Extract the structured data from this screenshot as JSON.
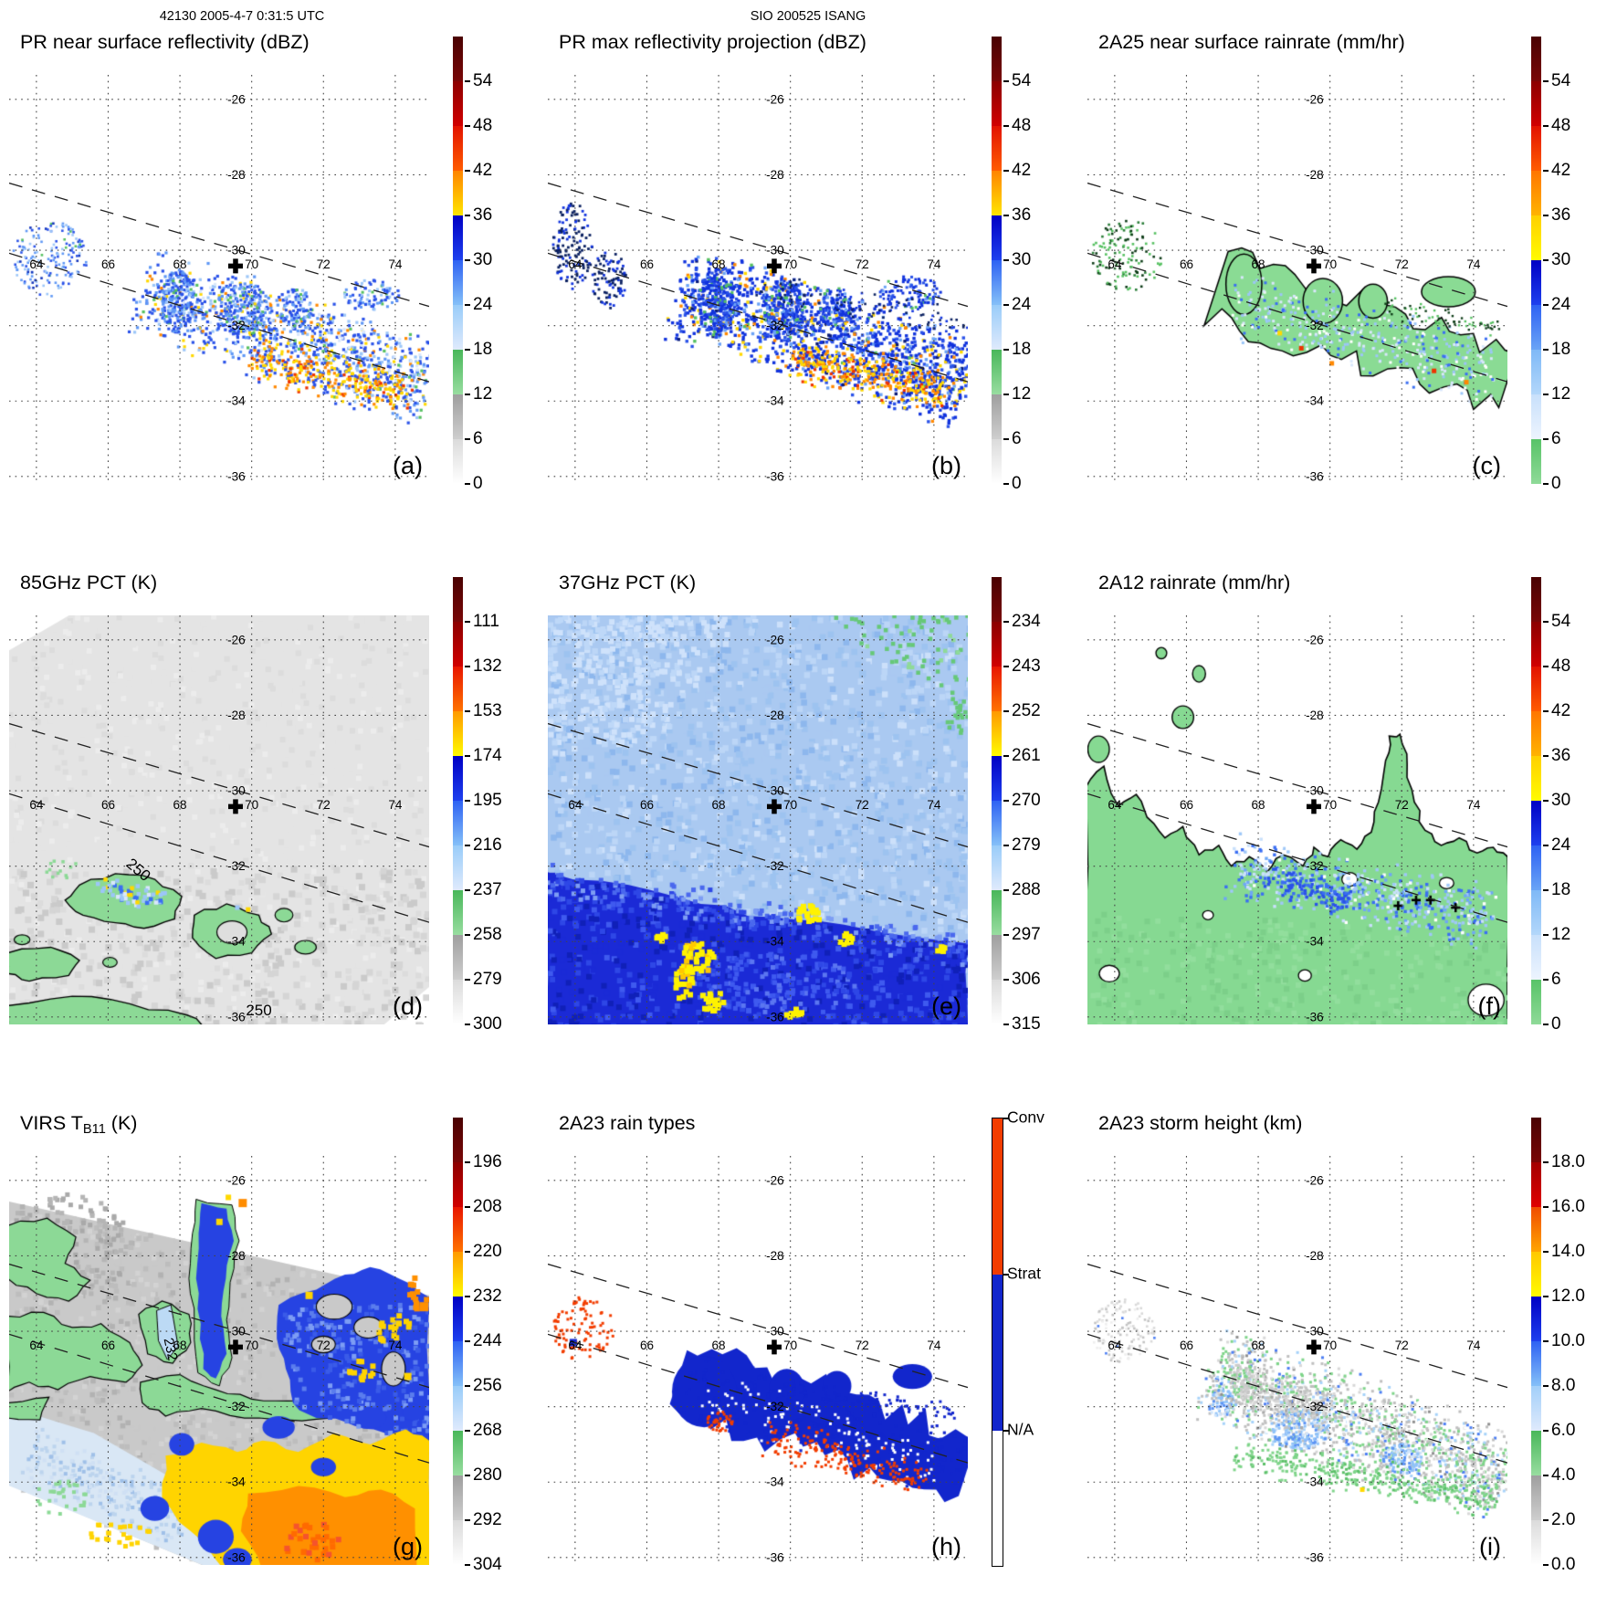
{
  "header": {
    "left": "42130 2005-4-7 0:31:5 UTC",
    "center": "SIO 200525 ISANG"
  },
  "map_labels": {
    "lons": [
      "64",
      "66",
      "68",
      "70",
      "72",
      "74"
    ],
    "lats": [
      "-26",
      "-28",
      "-30",
      "-32",
      "-34",
      "-36"
    ]
  },
  "marker": {
    "glyph": "plus"
  },
  "contour_labels": {
    "d": [
      "250",
      "250"
    ],
    "g": [
      "232"
    ]
  },
  "panels": [
    {
      "id": "a",
      "letter": "(a)",
      "title": "PR near surface reflectivity (dBZ)",
      "cb": "refl",
      "ticks": [
        "54",
        "48",
        "42",
        "36",
        "30",
        "24",
        "18",
        "12",
        "6",
        "0"
      ]
    },
    {
      "id": "b",
      "letter": "(b)",
      "title": "PR max reflectivity projection (dBZ)",
      "cb": "refl",
      "ticks": [
        "54",
        "48",
        "42",
        "36",
        "30",
        "24",
        "18",
        "12",
        "6",
        "0"
      ]
    },
    {
      "id": "c",
      "letter": "(c)",
      "title": "2A25 near surface rainrate (mm/hr)",
      "cb": "rain",
      "ticks": [
        "54",
        "48",
        "42",
        "36",
        "30",
        "24",
        "18",
        "12",
        "6",
        "0"
      ]
    },
    {
      "id": "d",
      "letter": "(d)",
      "title": "85GHz PCT (K)",
      "cb": "pct",
      "ticks": [
        "111",
        "132",
        "153",
        "174",
        "195",
        "216",
        "237",
        "258",
        "279",
        "300"
      ]
    },
    {
      "id": "e",
      "letter": "(e)",
      "title": "37GHz PCT (K)",
      "cb": "pct",
      "ticks": [
        "234",
        "243",
        "252",
        "261",
        "270",
        "279",
        "288",
        "297",
        "306",
        "315"
      ]
    },
    {
      "id": "f",
      "letter": "(f)",
      "title": "2A12 rainrate (mm/hr)",
      "cb": "rain",
      "ticks": [
        "54",
        "48",
        "42",
        "36",
        "30",
        "24",
        "18",
        "12",
        "6",
        "0"
      ]
    },
    {
      "id": "g",
      "letter": "(g)",
      "title_pre": "VIRS T",
      "title_sub": "B11",
      "title_post": " (K)",
      "cb": "pct",
      "ticks": [
        "196",
        "208",
        "220",
        "232",
        "244",
        "256",
        "268",
        "280",
        "292",
        "304"
      ]
    },
    {
      "id": "h",
      "letter": "(h)",
      "title": "2A23 rain types",
      "cb": "types",
      "ticks": []
    },
    {
      "id": "i",
      "letter": "(i)",
      "title": "2A23 storm height (km)",
      "cb": "height",
      "ticks": [
        "18.0",
        "16.0",
        "14.0",
        "12.0",
        "10.0",
        "8.0",
        "6.0",
        "4.0",
        "2.0",
        "0.0"
      ]
    }
  ],
  "colorbars": {
    "refl": {
      "bands": [
        [
          "#4a0202",
          "#790707"
        ],
        [
          "#8c0000",
          "#d10000"
        ],
        [
          "#e21300",
          "#ff5c00"
        ],
        [
          "#ff8400",
          "#ffe600"
        ],
        [
          "#0000c4",
          "#1e40ee"
        ],
        [
          "#2e62f3",
          "#85c0f8"
        ],
        [
          "#99ccf9",
          "#dfeafc"
        ],
        [
          "#49b75a",
          "#98dda0"
        ],
        [
          "#9f9f9f",
          "#cecece"
        ],
        [
          "#dbdbdb",
          "#ffffff"
        ]
      ]
    },
    "rain": {
      "bands": [
        [
          "#4a0202",
          "#790707"
        ],
        [
          "#8c0000",
          "#d10000"
        ],
        [
          "#e21300",
          "#ff5c00"
        ],
        [
          "#ff7600",
          "#ffb300"
        ],
        [
          "#ffd000",
          "#fffb00"
        ],
        [
          "#0000c4",
          "#1e40ee"
        ],
        [
          "#2e62f3",
          "#6aa4f6"
        ],
        [
          "#7fb9f7",
          "#b3d7fa"
        ],
        [
          "#c8e0fb",
          "#edf4fe"
        ],
        [
          "#58c368",
          "#8fda98"
        ]
      ]
    },
    "pct": {
      "bands": [
        [
          "#4a0202",
          "#790707"
        ],
        [
          "#8c0000",
          "#d10000"
        ],
        [
          "#e81600",
          "#ff7300"
        ],
        [
          "#ff9900",
          "#fffb00"
        ],
        [
          "#0000c4",
          "#1e40ee"
        ],
        [
          "#2e62f3",
          "#85c0f8"
        ],
        [
          "#99ccf9",
          "#dfeafc"
        ],
        [
          "#49b75a",
          "#98dda0"
        ],
        [
          "#9f9f9f",
          "#cecece"
        ],
        [
          "#dbdbdb",
          "#ffffff"
        ]
      ]
    },
    "height": {
      "bands": [
        [
          "#4a0202",
          "#790707"
        ],
        [
          "#a30000",
          "#e00000"
        ],
        [
          "#f04c00",
          "#ffa500"
        ],
        [
          "#ffc800",
          "#fffb00"
        ],
        [
          "#0000c4",
          "#1e40ee"
        ],
        [
          "#2e62f3",
          "#85c0f8"
        ],
        [
          "#a2cff9",
          "#dfeafc"
        ],
        [
          "#49b75a",
          "#98dda0"
        ],
        [
          "#9f9f9f",
          "#cecece"
        ],
        [
          "#dbdbdb",
          "#ffffff"
        ]
      ]
    },
    "types": {
      "segments": [
        {
          "label": "Conv",
          "color": "#f23d00"
        },
        {
          "label": "Strat",
          "color": "#1226cc"
        },
        {
          "label": "N/A",
          "color": "#ffffff"
        }
      ]
    }
  },
  "chart_data": [
    {
      "type": "heatmap",
      "panel": "a",
      "title": "PR near surface reflectivity (dBZ)",
      "units": "dBZ",
      "lon_range": [
        63.2,
        75.0
      ],
      "lat_range": [
        -36.1,
        -25.4
      ],
      "colorbar_ticks": [
        54,
        48,
        42,
        36,
        30,
        24,
        18,
        12,
        6,
        0
      ],
      "features": "Rain band of 18-36 dBZ echoes along PR swath lower edge from 67E,-31 to 75E,-33.7 with embedded 36-48 dBZ convective cores near 70-74E,-33; scattered weak echoes near 64E,-30; swath center cross at 69.5E,-30.4"
    },
    {
      "type": "heatmap",
      "panel": "b",
      "title": "PR max reflectivity projection (dBZ)",
      "units": "dBZ",
      "lon_range": [
        63.2,
        75.0
      ],
      "lat_range": [
        -36.1,
        -25.4
      ],
      "colorbar_ticks": [
        54,
        48,
        42,
        36,
        30,
        24,
        18,
        12,
        6,
        0
      ],
      "features": "Same band as (a) but denser and darker blue with more 30-42 dBZ area; dark outlined echo specks near 64E,-29.5 to -31 and along -31 between 69-75E"
    },
    {
      "type": "heatmap",
      "panel": "c",
      "title": "2A25 near surface rainrate (mm/hr)",
      "units": "mm/hr",
      "lon_range": [
        63.2,
        75.0
      ],
      "lat_range": [
        -36.1,
        -25.4
      ],
      "colorbar_ticks": [
        54,
        48,
        42,
        36,
        30,
        24,
        18,
        12,
        6,
        0
      ],
      "features": "Contoured light-rain (0-6 mm/hr, green) swath band 67-75E,-31 to -34 containing 6-24 mm/hr light-blue speckles and isolated 36-54 mm/hr pixels"
    },
    {
      "type": "heatmap",
      "panel": "d",
      "title": "85GHz PCT (K)",
      "units": "K",
      "lon_range": [
        63.2,
        75.0
      ],
      "lat_range": [
        -36.1,
        -25.4
      ],
      "colorbar_ticks": [
        111,
        132,
        153,
        174,
        195,
        216,
        237,
        258,
        279,
        300
      ],
      "features": "TMI swath mostly 258-300 K (gray/white); 237-258 K (green) depression blobs outlined by 250 K contour between 63-71E,-32.5 to -36; few 195-230 K (blue) pixels near 66-68E,-32.7; contour labels 250"
    },
    {
      "type": "heatmap",
      "panel": "e",
      "title": "37GHz PCT (K)",
      "units": "K",
      "lon_range": [
        63.2,
        75.0
      ],
      "lat_range": [
        -36.1,
        -25.4
      ],
      "colorbar_ticks": [
        234,
        243,
        252,
        261,
        270,
        279,
        288,
        297,
        306,
        315
      ],
      "features": "Broad 270-288 K (light blue) field; 261-270 K (dark blue) region south of a line from 63E,-32 to 75E,-34; 252-261 K (yellow) patches near 67E,-34.5, 70.5E,-33.2, 71.5E,-33.8; green (288-297 K) specks at top-right"
    },
    {
      "type": "heatmap",
      "panel": "f",
      "title": "2A12 rainrate (mm/hr)",
      "units": "mm/hr",
      "lon_range": [
        63.2,
        75.0
      ],
      "lat_range": [
        -36.1,
        -25.4
      ],
      "colorbar_ticks": [
        54,
        48,
        42,
        36,
        30,
        24,
        18,
        12,
        6,
        0
      ],
      "features": "Large contoured 0-6 mm/hr (green) region covering most of the area south of -30 to -32 with a finger to 71.7E,-28.5; 6-24 mm/hr blue speckle band 67-74E,-32 to -33.5; small white holes; black cross marks near 72-73.5E,-33"
    },
    {
      "type": "heatmap",
      "panel": "g",
      "title": "VIRS TB11 (K)",
      "units": "K",
      "lon_range": [
        63.2,
        75.0
      ],
      "lat_range": [
        -36.1,
        -25.4
      ],
      "colorbar_ticks": [
        196,
        208,
        220,
        232,
        244,
        256,
        268,
        280,
        292,
        304
      ],
      "features": "VIRS swath: warm gray (280-304 K) northwest; green (262-270 K) patches on left and rimming a warm tongue; cold 232-250 K blue bands near 68-69.5E and over the east; very cold 196-232 K yellow/orange cloud shield over the south-east quadrant; 232 contour label"
    },
    {
      "type": "categorical-map",
      "panel": "h",
      "title": "2A23 rain types",
      "categories": [
        "Conv",
        "Strat",
        "N/A"
      ],
      "lon_range": [
        63.2,
        75.0
      ],
      "lat_range": [
        -36.1,
        -25.4
      ],
      "features": "Stratiform (blue) rain area along swath 67-75E,-31 to -34.3 with embedded convective (orange-red) speckles 69.5-73.7E,-32.7 to -34; isolated convective specks near 64E,-30"
    },
    {
      "type": "heatmap",
      "panel": "i",
      "title": "2A23 storm height (km)",
      "units": "km",
      "lon_range": [
        63.2,
        75.0
      ],
      "lat_range": [
        -36.1,
        -25.4
      ],
      "colorbar_ticks": [
        18.0,
        16.0,
        14.0,
        12.0,
        10.0,
        8.0,
        6.0,
        4.0,
        2.0,
        0.0
      ],
      "features": "Storm heights 2-5 km (gray) and 5-7 km (green) across the rain band 66.5-75E,-31 to -34.4, with 7-10 km (light blue/blue) cells near 69E,-32.6 and 72E,-33.4"
    }
  ]
}
